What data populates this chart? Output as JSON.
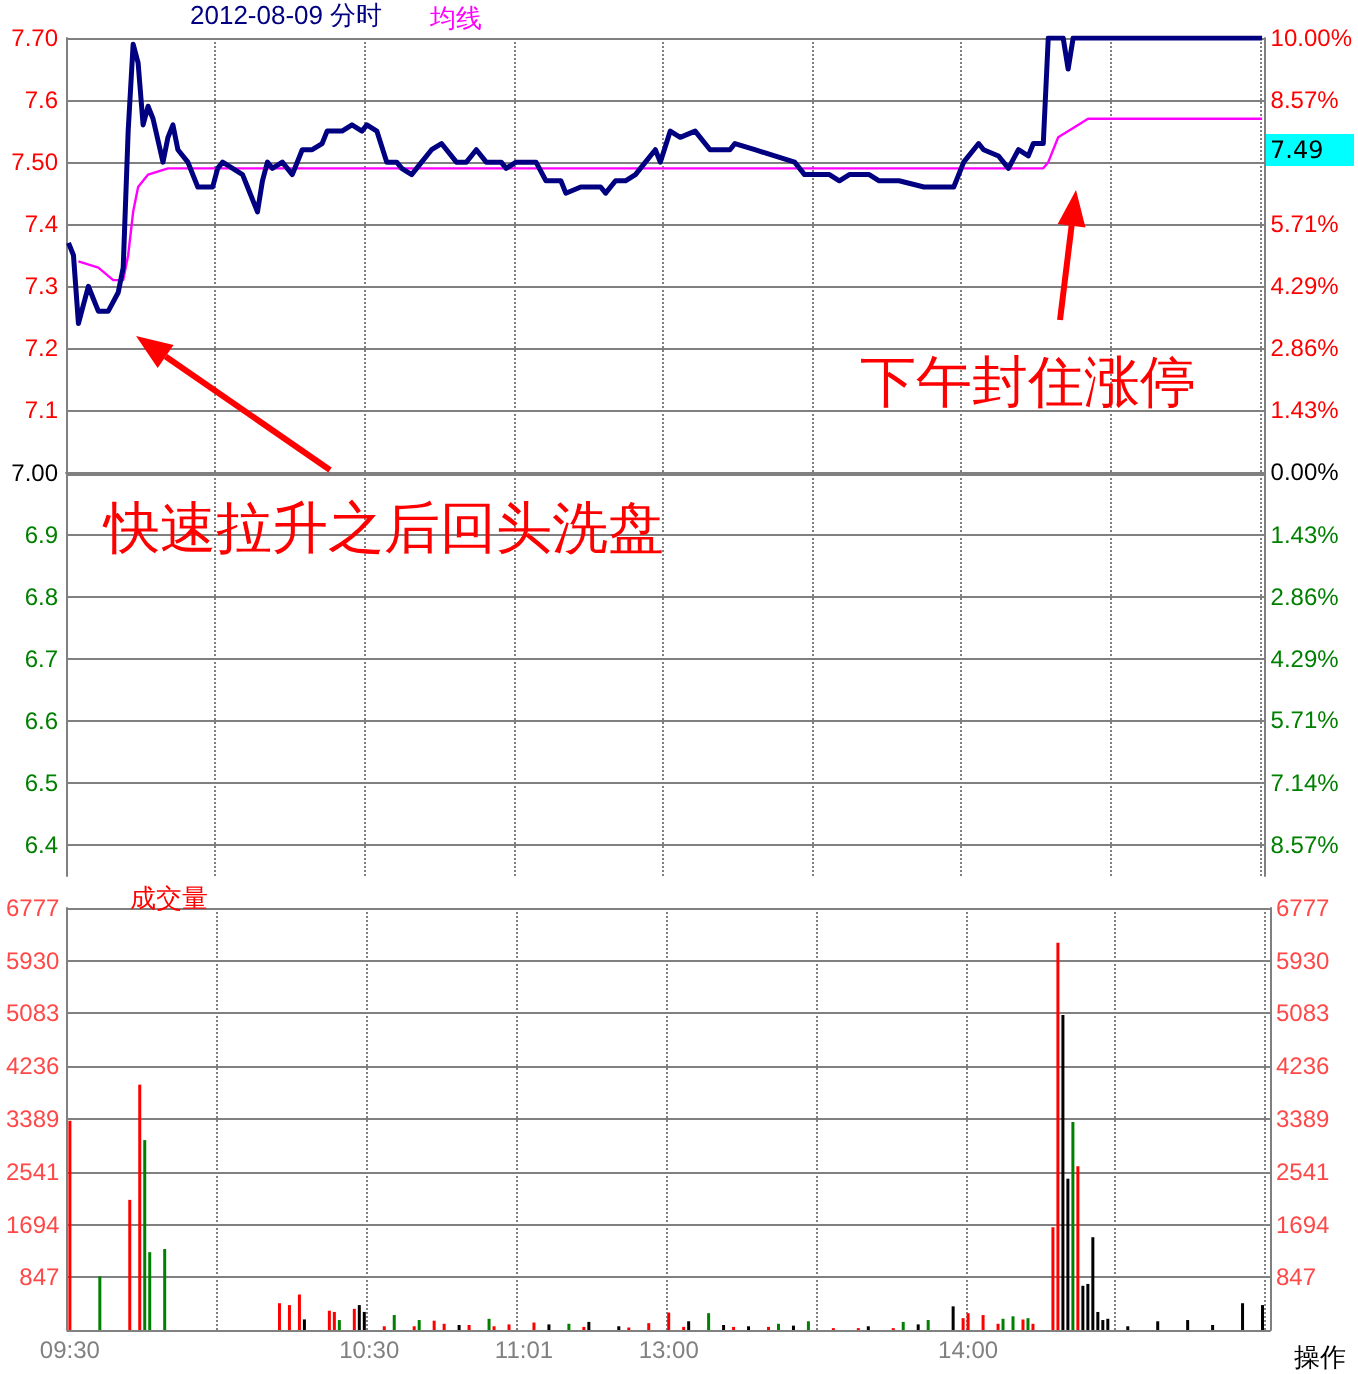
{
  "chart_data": [
    {
      "type": "line",
      "title": "2012-08-09 分时",
      "legend": "top left",
      "grid": true,
      "marker": "none",
      "categories": [
        null,
        null,
        null,
        null,
        null,
        null,
        null,
        null,
        null,
        null,
        null,
        null,
        null,
        null,
        null,
        null,
        null,
        null,
        null,
        null,
        null,
        null,
        null,
        null,
        null,
        null,
        null,
        null,
        null,
        null,
        null,
        null,
        null,
        null,
        null,
        null,
        null,
        null,
        null,
        null,
        null,
        null,
        null,
        null,
        null,
        null,
        null,
        null,
        null,
        null,
        null,
        null,
        null,
        null,
        null,
        null,
        null,
        null,
        null,
        null,
        null,
        null,
        null,
        null,
        null,
        null,
        null,
        null,
        null,
        null,
        null,
        null,
        null,
        null,
        null,
        null,
        null,
        null,
        null,
        null,
        null,
        null,
        null,
        null,
        null,
        null,
        null,
        null,
        null,
        null,
        null,
        null,
        null,
        null,
        null,
        null,
        null,
        null,
        null,
        null,
        null,
        null,
        null,
        null,
        null,
        null,
        null,
        null,
        null,
        null,
        null,
        null,
        null,
        null,
        null,
        null,
        null,
        null,
        null,
        null,
        null,
        null,
        null,
        null,
        null,
        null,
        null,
        null,
        null,
        null,
        null,
        null,
        null,
        null,
        null,
        null,
        null,
        null,
        null,
        null,
        null,
        null,
        null,
        null,
        null,
        null,
        null,
        null,
        null,
        null,
        null,
        null,
        null,
        null,
        null,
        null,
        null,
        null,
        null,
        null,
        null,
        null,
        null,
        null,
        null,
        null,
        null,
        null,
        null,
        null,
        null,
        null,
        null,
        null,
        null,
        null,
        null,
        null,
        null,
        null,
        null,
        null,
        null,
        null,
        null,
        null,
        null,
        null,
        null,
        null,
        null,
        null,
        null,
        null,
        null,
        null,
        null,
        null,
        null,
        null,
        null,
        null,
        null,
        null,
        null,
        null,
        null,
        null,
        null,
        null,
        null,
        null,
        null,
        null,
        null,
        null,
        null,
        null,
        null,
        null,
        null,
        null,
        null,
        null,
        null,
        null,
        null,
        null,
        null,
        null,
        null,
        null,
        null,
        null,
        null,
        null,
        null,
        null,
        null,
        null,
        null
      ],
      "ylim": [
        6.35,
        7.7
      ],
      "yticks": [
        6.4,
        6.5,
        6.6,
        6.7,
        6.8,
        6.9,
        {
          "value": 7.0,
          "label": "7.00"
        },
        7.1,
        7.2,
        7.3,
        7.4,
        {
          "value": 7.5,
          "label": "7.50"
        },
        7.6,
        {
          "value": 7.7,
          "label": "7.70"
        }
      ],
      "y2lim": [
        -9.29,
        10
      ],
      "y2ticks": [
        {
          "value": -8.57,
          "label": "8.57%"
        },
        {
          "value": -7.14,
          "label": "7.14%"
        },
        {
          "value": -5.71,
          "label": "5.71%"
        },
        {
          "value": -4.29,
          "label": "4.29%"
        },
        {
          "value": -2.86,
          "label": "2.86%"
        },
        {
          "value": -1.43,
          "label": "1.43%"
        },
        {
          "value": 0,
          "label": "0.00%"
        },
        {
          "value": 1.43,
          "label": "1.43%"
        },
        {
          "value": 2.86,
          "label": "2.86%"
        },
        {
          "value": 4.29,
          "label": "4.29%"
        },
        {
          "value": 5.71,
          "label": "5.71%"
        },
        {
          "value": 7.14,
          "label": null
        },
        {
          "value": 8.57,
          "label": "8.57%"
        },
        {
          "value": 10,
          "label": "10.00%"
        }
      ],
      "ref_lines": [
        {
          "axis": "y",
          "value": 7.0,
          "color": "#808080"
        }
      ],
      "annotations": [
        "快速拉升之后回头洗盘",
        "下午封住涨停",
        "7.49"
      ],
      "series": [
        {
          "color": "#000080",
          "values": [
            7.37,
            7.35,
            7.24,
            7.27,
            7.3,
            7.28,
            7.26,
            null,
            7.26,
            null,
            7.29,
            7.33,
            7.55,
            7.69,
            7.66,
            7.56,
            7.59,
            7.57,
            null,
            7.5,
            7.54,
            7.56,
            7.52,
            null,
            7.5,
            null,
            7.46,
            null,
            null,
            7.46,
            7.49,
            7.5,
            null,
            7.49,
            null,
            7.48,
            7.46,
            null,
            7.42,
            7.47,
            7.5,
            7.49,
            null,
            7.5,
            null,
            7.48,
            null,
            7.52,
            null,
            7.52,
            null,
            7.53,
            7.55,
            null,
            null,
            7.55,
            null,
            7.56,
            null,
            7.55,
            7.56,
            null,
            7.55,
            null,
            7.5,
            null,
            7.5,
            7.49,
            null,
            7.48,
            null,
            7.5,
            null,
            7.52,
            null,
            7.53,
            null,
            null,
            7.5,
            null,
            7.5,
            7.51,
            7.52,
            null,
            7.5,
            null,
            null,
            7.5,
            7.49,
            null,
            7.5,
            null,
            7.5,
            null,
            7.5,
            null,
            7.47,
            null,
            null,
            7.47,
            7.45,
            null,
            null,
            7.46,
            null,
            null,
            null,
            7.46,
            7.45,
            null,
            7.47,
            null,
            7.47,
            null,
            7.48,
            null,
            7.5,
            null,
            7.52,
            7.5,
            null,
            7.55,
            null,
            7.54,
            null,
            null,
            7.55,
            null,
            null,
            7.52,
            null,
            null,
            null,
            7.52,
            7.53,
            null,
            null,
            null,
            7.52,
            null,
            null,
            null,
            7.51,
            null,
            null,
            null,
            7.5,
            null,
            7.48,
            null,
            null,
            null,
            null,
            7.48,
            null,
            7.47,
            null,
            7.48,
            null,
            null,
            null,
            7.48,
            null,
            7.47,
            null,
            null,
            null,
            7.47,
            null,
            null,
            null,
            null,
            7.46,
            null,
            null,
            null,
            null,
            null,
            7.46,
            null,
            7.5,
            null,
            null,
            7.53,
            7.52,
            null,
            null,
            7.51,
            null,
            7.49,
            null,
            7.52,
            null,
            7.51,
            7.53,
            null,
            7.53,
            7.7,
            null,
            null,
            7.7,
            7.65,
            7.7,
            null,
            null,
            null,
            null,
            null,
            null,
            null,
            null,
            null,
            null,
            null,
            null,
            null,
            null,
            null,
            null,
            null,
            null,
            null,
            null,
            null,
            null,
            null,
            null,
            null,
            null,
            null,
            null,
            null,
            null,
            null,
            null,
            null,
            null,
            null,
            null,
            null,
            7.7
          ]
        },
        {
          "name": "均线",
          "color": "#ff00ff",
          "values": [
            null,
            null,
            7.34,
            null,
            null,
            null,
            7.33,
            null,
            null,
            7.31,
            null,
            7.31,
            7.35,
            7.42,
            7.46,
            null,
            7.48,
            null,
            null,
            null,
            7.49,
            null,
            null,
            null,
            null,
            null,
            null,
            null,
            null,
            null,
            null,
            null,
            null,
            null,
            null,
            null,
            null,
            null,
            null,
            null,
            null,
            null,
            null,
            null,
            null,
            null,
            null,
            null,
            null,
            null,
            null,
            null,
            null,
            null,
            null,
            null,
            null,
            null,
            null,
            null,
            7.49,
            null,
            null,
            null,
            null,
            null,
            null,
            null,
            null,
            null,
            null,
            null,
            null,
            null,
            null,
            null,
            null,
            null,
            null,
            null,
            null,
            null,
            null,
            null,
            null,
            null,
            null,
            null,
            null,
            null,
            null,
            null,
            null,
            null,
            null,
            null,
            null,
            null,
            null,
            null,
            null,
            null,
            null,
            null,
            null,
            null,
            null,
            null,
            null,
            null,
            null,
            null,
            null,
            null,
            null,
            null,
            null,
            null,
            null,
            null,
            7.49,
            null,
            null,
            null,
            null,
            null,
            null,
            null,
            null,
            null,
            null,
            null,
            null,
            null,
            null,
            null,
            null,
            null,
            null,
            null,
            null,
            null,
            null,
            null,
            null,
            null,
            null,
            null,
            null,
            null,
            null,
            null,
            null,
            null,
            null,
            null,
            null,
            null,
            null,
            null,
            null,
            null,
            null,
            null,
            null,
            null,
            null,
            null,
            null,
            null,
            null,
            null,
            null,
            null,
            null,
            null,
            null,
            null,
            null,
            null,
            null,
            null,
            null,
            null,
            null,
            null,
            null,
            null,
            null,
            null,
            7.49,
            null,
            null,
            null,
            null,
            null,
            7.49,
            7.5,
            null,
            7.54,
            null,
            null,
            null,
            7.56,
            null,
            7.57,
            null,
            null,
            null,
            null,
            null,
            null,
            null,
            null,
            null,
            null,
            null,
            null,
            null,
            null,
            null,
            null,
            null,
            null,
            null,
            null,
            null,
            null,
            null,
            null,
            null,
            null,
            null,
            null,
            null,
            null,
            null,
            null,
            null,
            null,
            7.57
          ]
        }
      ]
    },
    {
      "type": "bar",
      "legend": "top left",
      "grid": true,
      "categories": [
        "09:30",
        null,
        null,
        null,
        null,
        null,
        null,
        null,
        null,
        null,
        null,
        null,
        null,
        null,
        null,
        null,
        null,
        null,
        null,
        null,
        null,
        null,
        null,
        null,
        null,
        null,
        null,
        null,
        null,
        null,
        null,
        null,
        null,
        null,
        null,
        null,
        null,
        null,
        null,
        null,
        null,
        null,
        null,
        null,
        null,
        null,
        null,
        null,
        null,
        null,
        null,
        null,
        null,
        null,
        null,
        null,
        null,
        null,
        null,
        null,
        "10:30",
        null,
        null,
        null,
        null,
        null,
        null,
        null,
        null,
        null,
        null,
        null,
        null,
        null,
        null,
        null,
        null,
        null,
        null,
        null,
        null,
        null,
        null,
        null,
        null,
        null,
        null,
        null,
        null,
        null,
        null,
        "11:01",
        null,
        null,
        null,
        null,
        null,
        null,
        null,
        null,
        null,
        null,
        null,
        null,
        null,
        null,
        null,
        null,
        null,
        null,
        null,
        null,
        null,
        null,
        null,
        null,
        null,
        null,
        null,
        null,
        "13:00",
        null,
        null,
        null,
        null,
        null,
        null,
        null,
        null,
        null,
        null,
        null,
        null,
        null,
        null,
        null,
        null,
        null,
        null,
        null,
        null,
        null,
        null,
        null,
        null,
        null,
        null,
        null,
        null,
        null,
        null,
        null,
        null,
        null,
        null,
        null,
        null,
        null,
        null,
        null,
        null,
        null,
        null,
        null,
        null,
        null,
        null,
        null,
        null,
        null,
        null,
        null,
        null,
        null,
        null,
        null,
        null,
        null,
        null,
        null,
        "14:00",
        null,
        null,
        null,
        null,
        null,
        null,
        null,
        null,
        null,
        null,
        null,
        null,
        null,
        null,
        null,
        null,
        null,
        null,
        null,
        null,
        null,
        null,
        null,
        null,
        null,
        null,
        null,
        null,
        null,
        null,
        null,
        null,
        null,
        null,
        null,
        null,
        null,
        null,
        null,
        null,
        null,
        null,
        null,
        null,
        null,
        null,
        null,
        null,
        null,
        null,
        null,
        null,
        null,
        null,
        null,
        null,
        null,
        null,
        null,
        null
      ],
      "ylim": [
        0,
        6777
      ],
      "yticks": [
        847,
        1694,
        2541,
        3389,
        4236,
        5083,
        5930,
        6777
      ],
      "y2lim": [
        0,
        6777
      ],
      "y2ticks": [
        847,
        1694,
        2541,
        3389,
        4236,
        5083,
        5930,
        6777
      ],
      "annotations": [
        "操作"
      ],
      "series": [
        {
          "name": "成交量",
          "values": [
            3360,
            null,
            null,
            null,
            null,
            null,
            860,
            null,
            null,
            null,
            null,
            null,
            2090,
            null,
            3940,
            3050,
            1250,
            null,
            null,
            1300,
            null,
            null,
            null,
            null,
            null,
            null,
            null,
            null,
            null,
            null,
            null,
            null,
            null,
            null,
            null,
            null,
            null,
            null,
            null,
            null,
            null,
            null,
            430,
            null,
            400,
            null,
            570,
            170,
            null,
            null,
            null,
            null,
            310,
            290,
            160,
            null,
            null,
            340,
            400,
            290,
            null,
            null,
            null,
            60,
            null,
            240,
            null,
            null,
            null,
            60,
            160,
            null,
            null,
            150,
            null,
            100,
            null,
            null,
            80,
            null,
            80,
            null,
            null,
            null,
            180,
            60,
            null,
            null,
            90,
            null,
            null,
            null,
            null,
            120,
            null,
            null,
            90,
            null,
            null,
            null,
            100,
            null,
            null,
            50,
            130,
            null,
            null,
            null,
            null,
            null,
            60,
            null,
            40,
            null,
            null,
            null,
            110,
            null,
            null,
            null,
            280,
            null,
            null,
            50,
            140,
            null,
            null,
            null,
            270,
            null,
            null,
            80,
            null,
            50,
            null,
            null,
            60,
            null,
            null,
            null,
            50,
            null,
            100,
            null,
            null,
            70,
            null,
            null,
            140,
            null,
            null,
            null,
            null,
            30,
            null,
            null,
            null,
            null,
            30,
            null,
            60,
            null,
            null,
            null,
            null,
            30,
            null,
            130,
            null,
            null,
            90,
            null,
            160,
            null,
            null,
            null,
            null,
            380,
            null,
            190,
            270,
            null,
            null,
            240,
            null,
            null,
            100,
            180,
            null,
            220,
            null,
            170,
            190,
            100,
            null,
            null,
            null,
            1650,
            6220,
            5060,
            2430,
            3340,
            2630,
            710,
            740,
            1490,
            290,
            160,
            180,
            null,
            null,
            null,
            60,
            null,
            null,
            null,
            null,
            null,
            140,
            null,
            null,
            null,
            null,
            null,
            160,
            null,
            null,
            null,
            null,
            80,
            null,
            null,
            null,
            null,
            null,
            430,
            null,
            null,
            null,
            400,
            null
          ],
          "colors": [
            "#ff0000",
            null,
            null,
            null,
            null,
            null,
            "#008000",
            null,
            null,
            null,
            null,
            null,
            "#ff0000",
            null,
            "#ff0000",
            "#008000",
            "#008000",
            null,
            null,
            "#008000",
            null,
            null,
            null,
            null,
            null,
            null,
            null,
            null,
            null,
            null,
            null,
            null,
            null,
            null,
            null,
            null,
            null,
            null,
            null,
            null,
            null,
            null,
            "#ff0000",
            null,
            "#ff0000",
            null,
            "#ff0000",
            "#000000",
            null,
            null,
            null,
            null,
            "#ff0000",
            "#ff0000",
            "#008000",
            null,
            null,
            "#ff0000",
            "#000000",
            "#000000",
            null,
            null,
            null,
            "#ff0000",
            null,
            "#008000",
            null,
            null,
            null,
            "#ff0000",
            "#008000",
            null,
            null,
            "#ff0000",
            null,
            "#ff0000",
            null,
            null,
            "#000000",
            null,
            "#ff0000",
            null,
            null,
            null,
            "#008000",
            "#ff0000",
            null,
            null,
            "#ff0000",
            null,
            null,
            null,
            null,
            "#ff0000",
            null,
            null,
            "#000000",
            null,
            null,
            null,
            "#008000",
            null,
            null,
            "#ff0000",
            "#000000",
            null,
            null,
            null,
            null,
            null,
            "#000000",
            null,
            "#ff0000",
            null,
            null,
            null,
            "#ff0000",
            null,
            null,
            null,
            "#ff0000",
            null,
            null,
            "#ff0000",
            "#000000",
            null,
            null,
            null,
            "#008000",
            null,
            null,
            "#000000",
            null,
            "#ff0000",
            null,
            null,
            "#000000",
            null,
            null,
            null,
            "#ff0000",
            null,
            "#008000",
            null,
            null,
            "#000000",
            null,
            null,
            "#008000",
            null,
            null,
            null,
            null,
            "#ff0000",
            null,
            null,
            null,
            null,
            "#ff0000",
            null,
            "#000000",
            null,
            null,
            null,
            null,
            "#ff0000",
            null,
            "#008000",
            null,
            null,
            "#000000",
            null,
            "#008000",
            null,
            null,
            null,
            null,
            "#000000",
            null,
            "#ff0000",
            "#ff0000",
            null,
            null,
            "#ff0000",
            null,
            null,
            "#ff0000",
            "#008000",
            null,
            "#008000",
            null,
            "#ff0000",
            "#008000",
            "#ff0000",
            null,
            null,
            null,
            "#ff0000",
            "#ff0000",
            "#000000",
            "#000000",
            "#008000",
            "#ff0000",
            "#000000",
            "#000000",
            "#000000",
            "#000000",
            "#000000",
            "#000000",
            null,
            null,
            null,
            "#000000",
            null,
            null,
            null,
            null,
            null,
            "#000000",
            null,
            null,
            null,
            null,
            null,
            "#000000",
            null,
            null,
            null,
            null,
            "#000000",
            null,
            null,
            null,
            null,
            null,
            "#000000",
            null,
            null,
            null,
            "#000000",
            null
          ]
        }
      ]
    }
  ]
}
